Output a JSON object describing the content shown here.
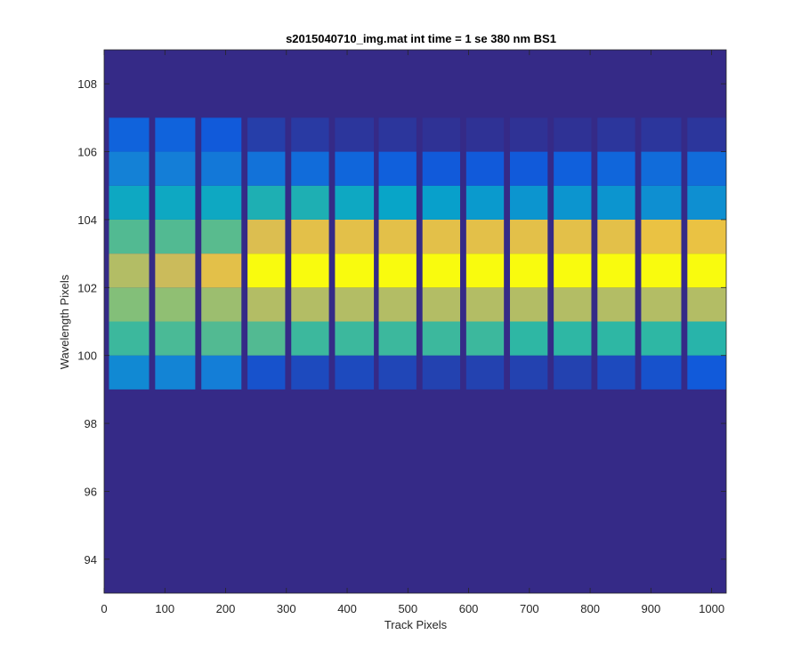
{
  "chart_data": {
    "type": "heatmap",
    "title": "s2015040710_img.mat int time = 1 se  380 nm BS1",
    "xlabel": "Track Pixels",
    "ylabel": "Wavelength Pixels",
    "xlim": [
      0,
      1024
    ],
    "ylim": [
      93,
      109
    ],
    "xticks": [
      0,
      100,
      200,
      300,
      400,
      500,
      600,
      700,
      800,
      900,
      1000
    ],
    "yticks": [
      94,
      96,
      98,
      100,
      102,
      104,
      106,
      108
    ],
    "colormap": [
      "#352a87",
      "#0f5cdd",
      "#1481d6",
      "#06a4ca",
      "#2eb7a4",
      "#87bf77",
      "#d1bb59",
      "#fec832",
      "#f9fb0e"
    ],
    "background_color": "#352a87",
    "rows": [
      99,
      100,
      101,
      102,
      103,
      104,
      105,
      106
    ],
    "stripes": [
      {
        "x0": 8,
        "x1": 74,
        "levels": [
          0.28,
          0.52,
          0.62,
          0.7,
          0.55,
          0.4,
          0.25,
          0.15
        ]
      },
      {
        "x0": 84,
        "x1": 150,
        "levels": [
          0.26,
          0.54,
          0.64,
          0.74,
          0.55,
          0.4,
          0.24,
          0.15
        ]
      },
      {
        "x0": 160,
        "x1": 226,
        "levels": [
          0.24,
          0.55,
          0.66,
          0.8,
          0.56,
          0.4,
          0.22,
          0.12
        ]
      },
      {
        "x0": 236,
        "x1": 298,
        "levels": [
          0.1,
          0.55,
          0.7,
          1.0,
          0.78,
          0.45,
          0.2,
          0.05
        ]
      },
      {
        "x0": 308,
        "x1": 370,
        "levels": [
          0.08,
          0.52,
          0.7,
          1.0,
          0.8,
          0.45,
          0.18,
          0.04
        ]
      },
      {
        "x0": 380,
        "x1": 444,
        "levels": [
          0.08,
          0.52,
          0.7,
          1.0,
          0.8,
          0.4,
          0.16,
          0.03
        ]
      },
      {
        "x0": 452,
        "x1": 514,
        "levels": [
          0.07,
          0.52,
          0.7,
          1.0,
          0.8,
          0.38,
          0.14,
          0.03
        ]
      },
      {
        "x0": 524,
        "x1": 586,
        "levels": [
          0.06,
          0.52,
          0.7,
          1.0,
          0.8,
          0.36,
          0.12,
          0.02
        ]
      },
      {
        "x0": 596,
        "x1": 658,
        "levels": [
          0.06,
          0.52,
          0.7,
          1.0,
          0.8,
          0.34,
          0.12,
          0.02
        ]
      },
      {
        "x0": 668,
        "x1": 730,
        "levels": [
          0.06,
          0.5,
          0.7,
          1.0,
          0.8,
          0.32,
          0.12,
          0.02
        ]
      },
      {
        "x0": 740,
        "x1": 802,
        "levels": [
          0.06,
          0.5,
          0.7,
          1.0,
          0.8,
          0.32,
          0.14,
          0.02
        ]
      },
      {
        "x0": 812,
        "x1": 874,
        "levels": [
          0.08,
          0.5,
          0.7,
          1.0,
          0.8,
          0.32,
          0.16,
          0.03
        ]
      },
      {
        "x0": 884,
        "x1": 950,
        "levels": [
          0.1,
          0.5,
          0.7,
          1.0,
          0.82,
          0.3,
          0.18,
          0.03
        ]
      },
      {
        "x0": 960,
        "x1": 1024,
        "levels": [
          0.12,
          0.48,
          0.7,
          1.0,
          0.82,
          0.3,
          0.18,
          0.03
        ]
      }
    ],
    "grid": false,
    "legend": "none"
  }
}
